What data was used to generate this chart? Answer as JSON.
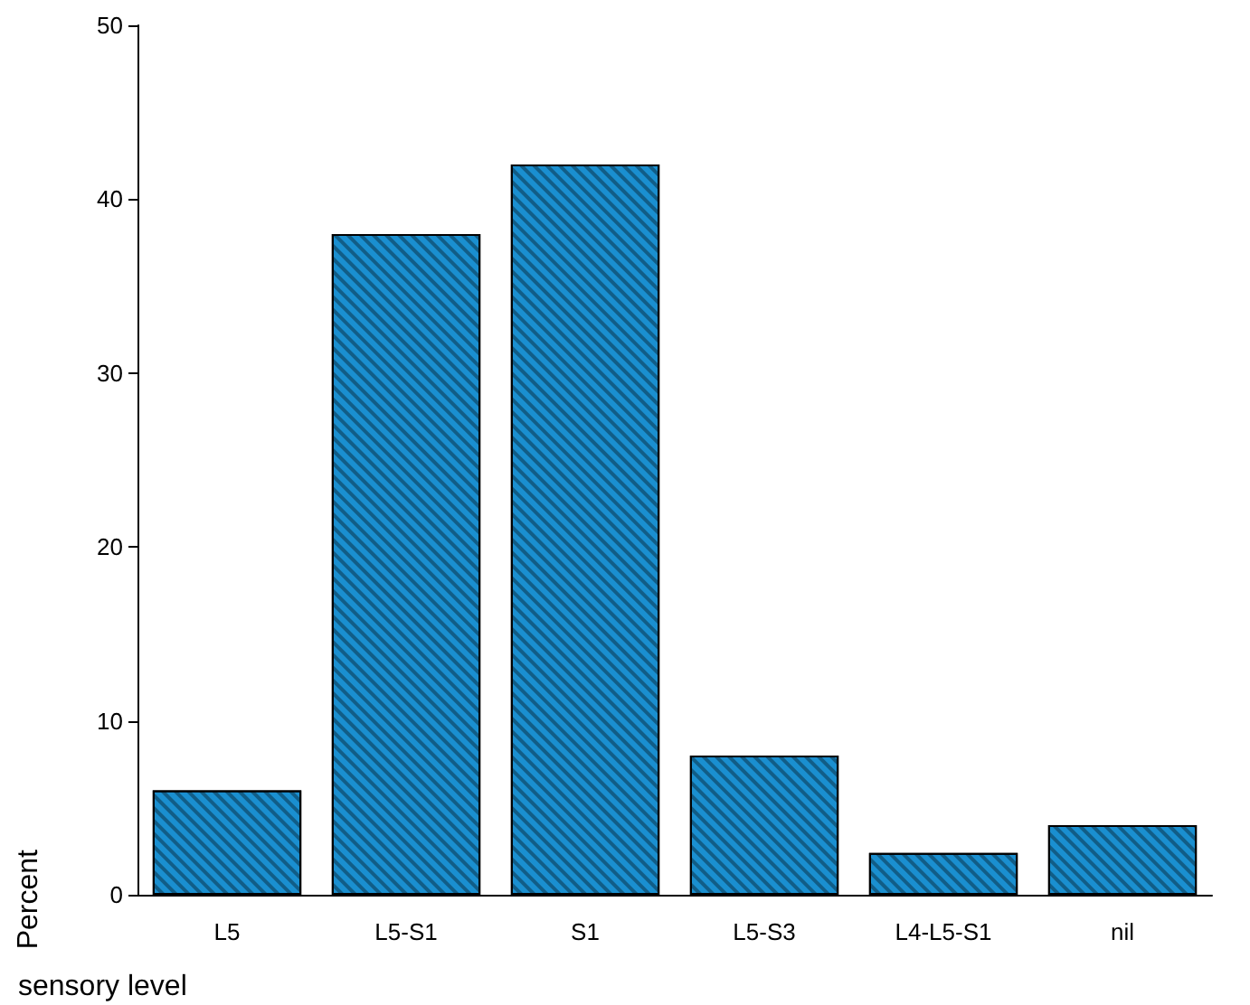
{
  "chart_data": {
    "type": "bar",
    "xlabel": "sensory level",
    "ylabel": "Percent",
    "categories": [
      "L5",
      "L5-S1",
      "S1",
      "L5-S3",
      "L4-L5-S1",
      "nil"
    ],
    "values": [
      6,
      38,
      42,
      8,
      2.4,
      4
    ],
    "color": "#1a8fd0",
    "ylim": [
      0,
      50
    ],
    "yticks": [
      0,
      10,
      20,
      30,
      40,
      50
    ],
    "grid": false
  }
}
